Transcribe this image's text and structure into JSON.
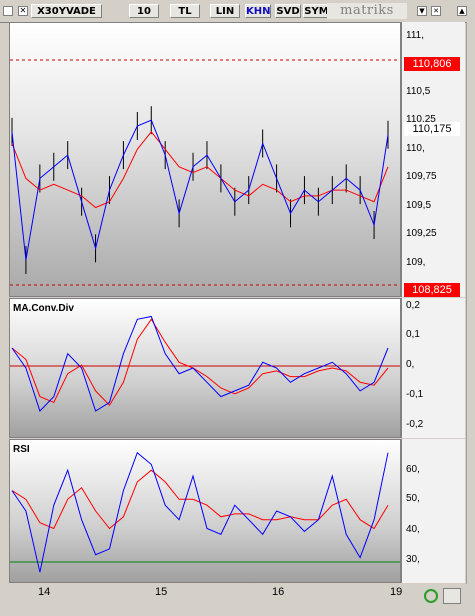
{
  "toolbar": {
    "symbol": "X30YVADE",
    "period": "10",
    "currency": "TL",
    "scale": "LIN",
    "mode": "KHN",
    "svd": "SVD",
    "sym": "SYM",
    "brand": "matriks"
  },
  "price_panel": {
    "ticks": [
      "111,",
      "110,5",
      "110,25",
      "110,",
      "109,75",
      "109,5",
      "109,25",
      "109,"
    ],
    "badge_upper": "110,806",
    "badge_last": "110,175",
    "badge_lower": "108,825"
  },
  "macd_panel": {
    "label": "MA.Conv.Div",
    "ticks": [
      "0,2",
      "0,1",
      "0,",
      "-0,1",
      "-0,2"
    ]
  },
  "rsi_panel": {
    "label": "RSI",
    "ticks": [
      "60,",
      "50,",
      "40,",
      "30,"
    ]
  },
  "x_axis": {
    "labels": [
      "14",
      "15",
      "16",
      "19"
    ]
  },
  "colors": {
    "ma_line": "#ff0000",
    "indicator_line": "#0000ff",
    "signal_line": "#ff0000",
    "guide_line": "#cc0000",
    "rsi_guide": "#008000"
  },
  "chart_data": [
    {
      "type": "line",
      "series": [
        {
          "values": [
            110.2,
            109.1,
            109.8,
            109.9,
            110.0,
            109.6,
            109.2,
            109.7,
            110.0,
            110.25,
            110.3,
            110.0,
            109.5,
            109.9,
            110.0,
            109.8,
            109.6,
            109.7,
            110.1,
            109.8,
            109.5,
            109.7,
            109.6,
            109.7,
            109.8,
            109.7,
            109.4,
            110.175
          ]
        },
        {
          "values": [
            110.1,
            109.8,
            109.7,
            109.75,
            109.7,
            109.65,
            109.55,
            109.6,
            109.8,
            110.05,
            110.2,
            110.05,
            109.9,
            109.85,
            109.9,
            109.8,
            109.7,
            109.65,
            109.75,
            109.7,
            109.6,
            109.65,
            109.65,
            109.7,
            109.7,
            109.65,
            109.6,
            109.9
          ]
        }
      ],
      "ylim": [
        108.825,
        111.1
      ],
      "guides": [
        110.806,
        108.825
      ]
    },
    {
      "type": "line",
      "series": [
        {
          "values": [
            0.07,
            0.0,
            -0.15,
            -0.1,
            0.05,
            0.0,
            -0.15,
            -0.12,
            0.05,
            0.17,
            0.18,
            0.05,
            -0.02,
            0.0,
            -0.05,
            -0.1,
            -0.08,
            -0.06,
            0.02,
            0.0,
            -0.05,
            -0.02,
            0.0,
            0.02,
            -0.02,
            -0.08,
            -0.05,
            0.07
          ]
        },
        {
          "values": [
            0.07,
            0.03,
            -0.1,
            -0.12,
            -0.02,
            0.01,
            -0.08,
            -0.13,
            -0.05,
            0.1,
            0.17,
            0.09,
            0.02,
            0.0,
            -0.03,
            -0.07,
            -0.09,
            -0.07,
            -0.02,
            -0.01,
            -0.03,
            -0.03,
            -0.01,
            0.0,
            -0.01,
            -0.05,
            -0.06,
            0.0
          ]
        }
      ],
      "ylim": [
        -0.22,
        0.22
      ],
      "guides": [
        0
      ]
    },
    {
      "type": "line",
      "series": [
        {
          "values": [
            55,
            48,
            27,
            50,
            62,
            45,
            33,
            35,
            55,
            68,
            64,
            50,
            45,
            60,
            42,
            40,
            50,
            45,
            40,
            48,
            46,
            41,
            45,
            60,
            40,
            32,
            45,
            68
          ]
        },
        {
          "values": [
            55,
            52,
            44,
            42,
            52,
            56,
            48,
            42,
            46,
            58,
            62,
            58,
            52,
            52,
            50,
            46,
            47,
            47,
            45,
            45,
            46,
            45,
            45,
            50,
            52,
            45,
            42,
            50
          ]
        }
      ],
      "ylim": [
        25,
        71
      ],
      "guides": [
        30
      ]
    }
  ]
}
